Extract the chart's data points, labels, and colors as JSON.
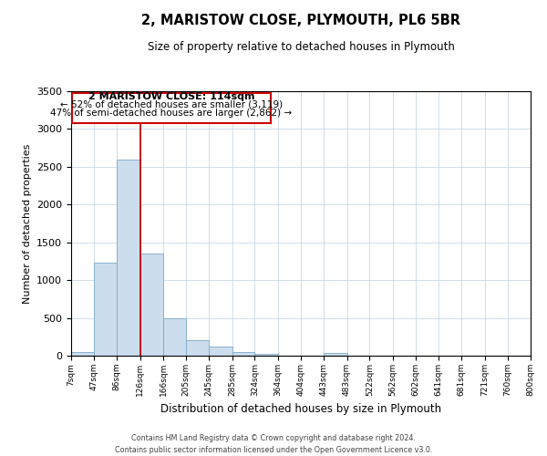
{
  "title": "2, MARISTOW CLOSE, PLYMOUTH, PL6 5BR",
  "subtitle": "Size of property relative to detached houses in Plymouth",
  "xlabel": "Distribution of detached houses by size in Plymouth",
  "ylabel": "Number of detached properties",
  "bar_color": "#ccdded",
  "bar_edge_color": "#7aaac8",
  "grid_color": "#c8d8e8",
  "background_color": "#ffffff",
  "bins": [
    7,
    47,
    86,
    126,
    166,
    205,
    245,
    285,
    324,
    364,
    404,
    443,
    483,
    522,
    562,
    602,
    641,
    681,
    721,
    760,
    800
  ],
  "bin_labels": [
    "7sqm",
    "47sqm",
    "86sqm",
    "126sqm",
    "166sqm",
    "205sqm",
    "245sqm",
    "285sqm",
    "324sqm",
    "364sqm",
    "404sqm",
    "443sqm",
    "483sqm",
    "522sqm",
    "562sqm",
    "602sqm",
    "641sqm",
    "681sqm",
    "721sqm",
    "760sqm",
    "800sqm"
  ],
  "values": [
    50,
    1230,
    2600,
    1350,
    500,
    200,
    115,
    50,
    25,
    5,
    5,
    40,
    5,
    0,
    0,
    0,
    0,
    0,
    0,
    0
  ],
  "ylim": [
    0,
    3500
  ],
  "yticks": [
    0,
    500,
    1000,
    1500,
    2000,
    2500,
    3000,
    3500
  ],
  "property_line_x": 126,
  "property_line_color": "#cc0000",
  "annotation_title": "2 MARISTOW CLOSE: 114sqm",
  "annotation_line1": "← 52% of detached houses are smaller (3,119)",
  "annotation_line2": "47% of semi-detached houses are larger (2,862) →",
  "annotation_box_color": "#cc0000",
  "footer_line1": "Contains HM Land Registry data © Crown copyright and database right 2024.",
  "footer_line2": "Contains public sector information licensed under the Open Government Licence v3.0."
}
